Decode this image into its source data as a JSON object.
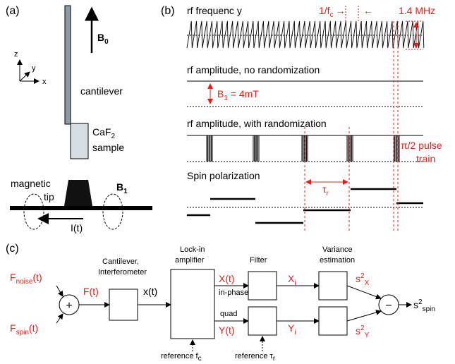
{
  "panel_a": {
    "label": "(a)",
    "b0": {
      "main": "B",
      "sub": "0"
    },
    "axes": {
      "z": "z",
      "y": "y",
      "x": "x"
    },
    "cantilever": "cantilever",
    "sample_material": {
      "main": "CaF",
      "sub": "2"
    },
    "sample": "sample",
    "magnetic": "magnetic",
    "tip": "tip",
    "b1": {
      "main": "B",
      "sub": "1"
    },
    "current": "I(t)"
  },
  "panel_b": {
    "label": "(b)",
    "rf_frequency": "rf frequenc  y",
    "period": {
      "main": "1/f",
      "sub": "c",
      "left_arrow": "→",
      "right_arrow": "←"
    },
    "span": "1.4 MHz",
    "no_random": "rf amplitude, no randomization",
    "b1_amp": {
      "main": "B",
      "sub": "1",
      "tail": " = 4mT"
    },
    "with_random": "rf amplitude, with randomization",
    "pulse": "π/2 pulse",
    "train": "train",
    "spin": "Spin polarization",
    "tau": {
      "main": "τ",
      "sub": "r"
    }
  },
  "panel_c": {
    "label": "(c)",
    "f_noise": {
      "main": "F",
      "sub": "noise",
      "tail": "(t)"
    },
    "f_spin": {
      "main": "F",
      "sub": "spin",
      "tail": "(t)"
    },
    "plus": "+",
    "ft": "F(t)",
    "xt_small": "x(t)",
    "cantilever": "Cantilever,",
    "interferometer": "Interferometer",
    "lockin": "Lock-in",
    "amplifier": "amplifier",
    "Xt": "X(t)",
    "inphase": "in-phase",
    "quad": "quad",
    "Yt": "Y(t)",
    "filter": "Filter",
    "Xi": {
      "main": "X",
      "sub": "i"
    },
    "Yi": {
      "main": "Y",
      "sub": "i"
    },
    "variance": "Variance",
    "estimation": "estimation",
    "s2x": {
      "main": "s",
      "sup": "2",
      "sub": "X"
    },
    "s2y": {
      "main": "s",
      "sup": "2",
      "sub": "Y"
    },
    "minus": "−",
    "s2spin": {
      "main": "s",
      "sup": "2",
      "sub": "spin"
    },
    "ref_f": {
      "main": "reference f",
      "sub": "c"
    },
    "ref_tau": {
      "main": "reference τ",
      "sub": "r"
    }
  }
}
